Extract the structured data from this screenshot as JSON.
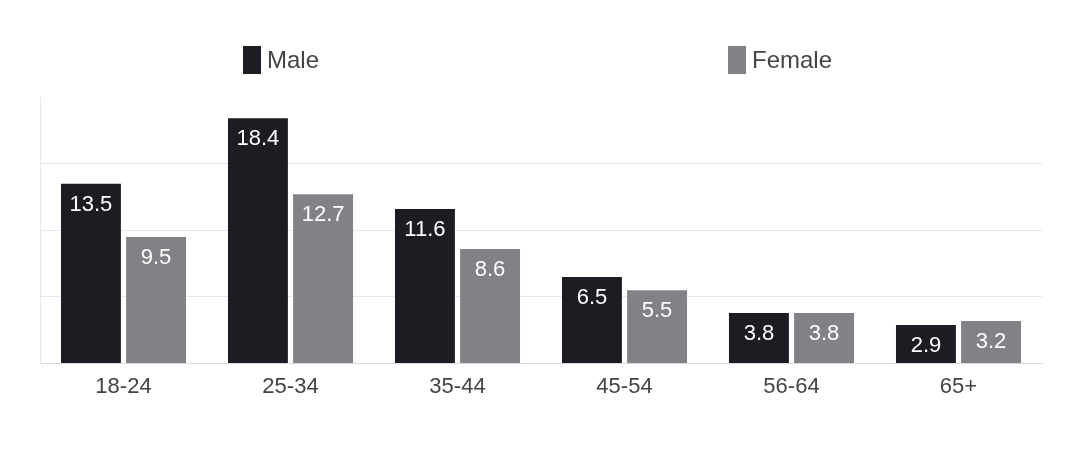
{
  "chart_data": {
    "type": "bar",
    "categories": [
      "18-24",
      "25-34",
      "35-44",
      "45-54",
      "56-64",
      "65+"
    ],
    "series": [
      {
        "name": "Male",
        "color": "#1b1d22",
        "values": [
          13.5,
          18.4,
          11.6,
          6.5,
          3.8,
          2.9
        ]
      },
      {
        "name": "Female",
        "color": "#808285",
        "values": [
          9.5,
          12.7,
          8.6,
          5.5,
          3.8,
          3.2
        ]
      }
    ],
    "ylim": [
      0,
      20
    ],
    "yticks": [
      0,
      5,
      10,
      15
    ],
    "grid": true,
    "legend": "top",
    "data_labels": true,
    "tick_labels": "x"
  }
}
